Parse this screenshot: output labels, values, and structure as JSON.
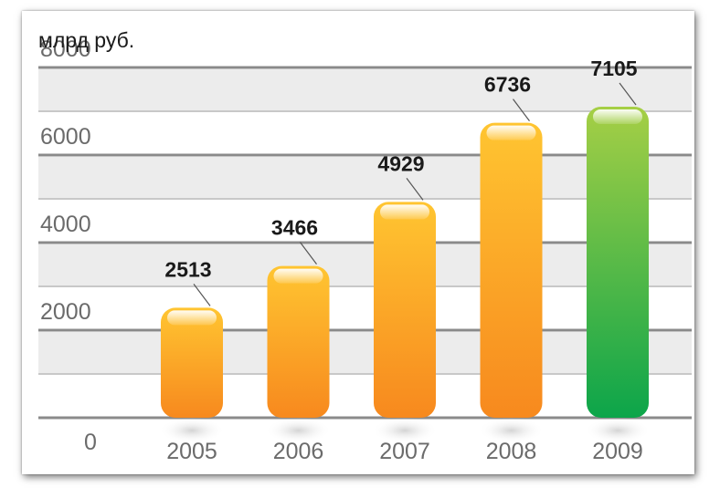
{
  "chart_data": {
    "type": "bar",
    "unit_label": "млрд руб.",
    "categories": [
      "2005",
      "2006",
      "2007",
      "2008",
      "2009"
    ],
    "values": [
      2513,
      3466,
      4929,
      6736,
      7105
    ],
    "data_labels": [
      "2513",
      "3466",
      "4929",
      "6736",
      "7105"
    ],
    "y_ticks": [
      "0",
      "2000",
      "4000",
      "6000",
      "8000"
    ],
    "y_tick_values": [
      0,
      2000,
      4000,
      6000,
      8000
    ],
    "ylim": [
      0,
      8000
    ],
    "grid": true,
    "colors": {
      "bar_top": "#ffc531",
      "bar_bottom": "#f7891e",
      "highlight_top": "#a6cf45",
      "highlight_bottom": "#0ca54a",
      "band": "#ececec",
      "grid_major": "#8a8a8a",
      "grid_minor": "#c8c8c8"
    },
    "highlight_index": 4
  }
}
